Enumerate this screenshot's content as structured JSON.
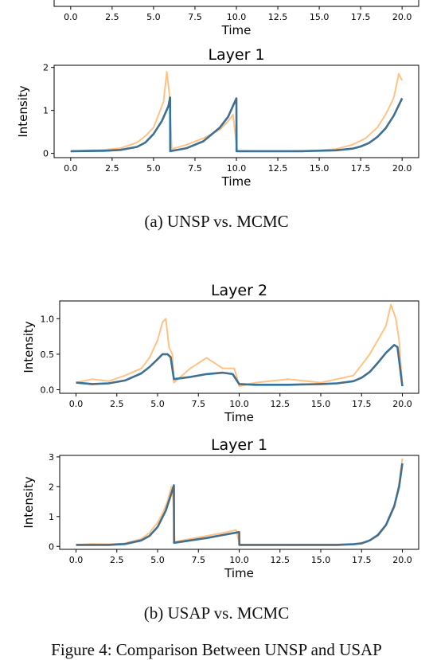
{
  "figure": {
    "caption_a": "(a) UNSP vs. MCMC",
    "caption_b": "(b) USAP vs. MCMC",
    "bottom_text": "Figure 4: Comparison Between UNSP and USAP"
  },
  "colors": {
    "model": "#1f77b4",
    "mcmc": "#ffbb78",
    "ref": "#666666"
  },
  "chart_data": [
    {
      "type": "line",
      "panel": "a-top",
      "title": "",
      "xlabel": "Time",
      "ylabel": "",
      "xlim": [
        -1,
        21
      ],
      "xticks": [
        0.0,
        2.5,
        5.0,
        7.5,
        10.0,
        12.5,
        15.0,
        17.5,
        20.0
      ],
      "xtick_labels": [
        "0.0",
        "2.5",
        "5.0",
        "7.5",
        "10.0",
        "12.5",
        "15.0",
        "17.5",
        "20.0"
      ],
      "series": []
    },
    {
      "type": "line",
      "panel": "a-layer1",
      "title": "Layer 1",
      "xlabel": "Time",
      "ylabel": "Intensity",
      "xlim": [
        -1,
        21
      ],
      "ylim": [
        -0.1,
        2.05
      ],
      "xticks": [
        0.0,
        2.5,
        5.0,
        7.5,
        10.0,
        12.5,
        15.0,
        17.5,
        20.0
      ],
      "xtick_labels": [
        "0.0",
        "2.5",
        "5.0",
        "7.5",
        "10.0",
        "12.5",
        "15.0",
        "17.5",
        "20.0"
      ],
      "yticks": [
        0,
        1,
        2
      ],
      "ytick_labels": [
        "0",
        "1",
        "2"
      ],
      "series": [
        {
          "role": "mcmc",
          "x": [
            0,
            1,
            2,
            3,
            4,
            4.5,
            5,
            5.3,
            5.6,
            5.8,
            5.95,
            6.1,
            7,
            8,
            9,
            9.5,
            9.8,
            10.05,
            11,
            13,
            15,
            16,
            17,
            17.8,
            18.5,
            19,
            19.5,
            19.8,
            20
          ],
          "y": [
            0.05,
            0.07,
            0.08,
            0.12,
            0.25,
            0.4,
            0.6,
            0.9,
            1.2,
            1.9,
            1.4,
            0.1,
            0.2,
            0.35,
            0.55,
            0.75,
            0.9,
            0.06,
            0.05,
            0.05,
            0.07,
            0.1,
            0.2,
            0.35,
            0.6,
            0.9,
            1.3,
            1.85,
            1.7
          ]
        },
        {
          "role": "model",
          "x": [
            0,
            2,
            3,
            4,
            4.5,
            5,
            5.5,
            5.9,
            6.0,
            6.01,
            7,
            8,
            9,
            9.5,
            10.0,
            10.01,
            12,
            14,
            16,
            17,
            17.5,
            18,
            18.5,
            19,
            19.5,
            20
          ],
          "y": [
            0.05,
            0.06,
            0.08,
            0.15,
            0.25,
            0.45,
            0.75,
            1.1,
            1.3,
            0.05,
            0.12,
            0.28,
            0.6,
            0.85,
            1.28,
            0.05,
            0.05,
            0.05,
            0.07,
            0.11,
            0.16,
            0.24,
            0.38,
            0.58,
            0.88,
            1.28
          ]
        },
        {
          "role": "ref",
          "x": [
            0,
            2,
            3,
            4,
            4.5,
            5,
            5.5,
            5.9,
            6.0,
            6.01,
            7,
            8,
            9,
            9.5,
            10.0,
            10.01,
            12,
            14,
            16,
            17,
            17.5,
            18,
            18.5,
            19,
            19.5,
            20
          ],
          "y": [
            0.05,
            0.06,
            0.08,
            0.15,
            0.25,
            0.45,
            0.75,
            1.1,
            1.3,
            0.05,
            0.12,
            0.28,
            0.6,
            0.85,
            1.28,
            0.05,
            0.05,
            0.05,
            0.07,
            0.11,
            0.16,
            0.24,
            0.38,
            0.58,
            0.88,
            1.28
          ]
        }
      ]
    },
    {
      "type": "line",
      "panel": "b-layer2",
      "title": "Layer 2",
      "xlabel": "Time",
      "ylabel": "Intensity",
      "xlim": [
        -1,
        21
      ],
      "ylim": [
        -0.05,
        1.25
      ],
      "xticks": [
        0.0,
        2.5,
        5.0,
        7.5,
        10.0,
        12.5,
        15.0,
        17.5,
        20.0
      ],
      "xtick_labels": [
        "0.0",
        "2.5",
        "5.0",
        "7.5",
        "10.0",
        "12.5",
        "15.0",
        "17.5",
        "20.0"
      ],
      "yticks": [
        0.0,
        0.5,
        1.0
      ],
      "ytick_labels": [
        "0.0",
        "0.5",
        "1.0"
      ],
      "series": [
        {
          "role": "mcmc",
          "x": [
            0,
            1,
            2,
            3,
            4,
            4.5,
            5,
            5.3,
            5.5,
            5.7,
            5.9,
            6.0,
            7,
            8,
            9,
            9.7,
            10.0,
            11,
            13,
            15,
            16,
            17,
            17.5,
            18,
            18.5,
            19,
            19.3,
            19.6,
            19.8,
            20
          ],
          "y": [
            0.1,
            0.15,
            0.12,
            0.2,
            0.3,
            0.45,
            0.7,
            0.95,
            1.0,
            0.6,
            0.5,
            0.1,
            0.3,
            0.45,
            0.3,
            0.3,
            0.05,
            0.1,
            0.15,
            0.1,
            0.15,
            0.2,
            0.35,
            0.5,
            0.7,
            0.9,
            1.2,
            1.0,
            0.7,
            0.05
          ]
        },
        {
          "role": "model",
          "x": [
            0,
            1,
            2,
            3,
            4,
            4.5,
            5,
            5.3,
            5.6,
            5.8,
            6.0,
            7,
            8,
            9,
            9.6,
            10.0,
            11,
            13,
            15,
            16,
            17,
            17.5,
            18,
            18.5,
            19,
            19.5,
            19.7,
            20
          ],
          "y": [
            0.1,
            0.08,
            0.09,
            0.13,
            0.23,
            0.32,
            0.43,
            0.5,
            0.5,
            0.46,
            0.15,
            0.18,
            0.22,
            0.24,
            0.22,
            0.08,
            0.07,
            0.07,
            0.08,
            0.09,
            0.12,
            0.17,
            0.25,
            0.38,
            0.52,
            0.63,
            0.6,
            0.05
          ]
        },
        {
          "role": "ref",
          "x": [
            0,
            1,
            2,
            3,
            4,
            4.5,
            5,
            5.3,
            5.6,
            5.8,
            6.0,
            7,
            8,
            9,
            9.6,
            10.0,
            11,
            13,
            15,
            16,
            17,
            17.5,
            18,
            18.5,
            19,
            19.5,
            19.7,
            20
          ],
          "y": [
            0.1,
            0.08,
            0.09,
            0.13,
            0.23,
            0.32,
            0.43,
            0.5,
            0.5,
            0.46,
            0.15,
            0.18,
            0.22,
            0.24,
            0.22,
            0.08,
            0.07,
            0.07,
            0.08,
            0.09,
            0.12,
            0.17,
            0.25,
            0.38,
            0.52,
            0.63,
            0.6,
            0.05
          ]
        }
      ]
    },
    {
      "type": "line",
      "panel": "b-layer1",
      "title": "Layer 1",
      "xlabel": "Time",
      "ylabel": "Intensity",
      "xlim": [
        -1,
        21
      ],
      "ylim": [
        -0.1,
        3.05
      ],
      "xticks": [
        0.0,
        2.5,
        5.0,
        7.5,
        10.0,
        12.5,
        15.0,
        17.5,
        20.0
      ],
      "xtick_labels": [
        "0.0",
        "2.5",
        "5.0",
        "7.5",
        "10.0",
        "12.5",
        "15.0",
        "17.5",
        "20.0"
      ],
      "yticks": [
        0,
        1,
        2,
        3
      ],
      "ytick_labels": [
        "0",
        "1",
        "2",
        "3"
      ],
      "series": [
        {
          "role": "mcmc",
          "x": [
            0,
            1,
            2,
            3,
            4,
            4.5,
            5,
            5.3,
            5.6,
            5.85,
            5.95,
            6.05,
            7,
            8,
            9,
            9.8,
            10.05,
            12,
            14,
            16,
            17,
            17.8,
            18.5,
            19,
            19.5,
            19.8,
            20
          ],
          "y": [
            0.05,
            0.08,
            0.07,
            0.1,
            0.25,
            0.45,
            0.8,
            1.1,
            1.5,
            2.0,
            1.6,
            0.15,
            0.25,
            0.35,
            0.45,
            0.55,
            0.05,
            0.05,
            0.06,
            0.06,
            0.08,
            0.15,
            0.35,
            0.7,
            1.3,
            2.1,
            2.95
          ]
        },
        {
          "role": "model",
          "x": [
            0,
            2,
            3,
            4,
            4.5,
            5,
            5.5,
            5.8,
            6.0,
            6.01,
            7,
            8,
            9,
            10.0,
            10.01,
            12,
            14,
            16,
            17,
            17.5,
            18,
            18.5,
            19,
            19.5,
            19.8,
            20
          ],
          "y": [
            0.05,
            0.05,
            0.08,
            0.2,
            0.35,
            0.65,
            1.2,
            1.7,
            2.05,
            0.12,
            0.2,
            0.28,
            0.38,
            0.48,
            0.05,
            0.05,
            0.05,
            0.05,
            0.07,
            0.1,
            0.2,
            0.38,
            0.72,
            1.35,
            2.0,
            2.78
          ]
        },
        {
          "role": "ref",
          "x": [
            0,
            2,
            3,
            4,
            4.5,
            5,
            5.5,
            5.8,
            6.0,
            6.01,
            7,
            8,
            9,
            10.0,
            10.01,
            12,
            14,
            16,
            17,
            17.5,
            18,
            18.5,
            19,
            19.5,
            19.8,
            20
          ],
          "y": [
            0.05,
            0.05,
            0.08,
            0.2,
            0.35,
            0.65,
            1.2,
            1.7,
            2.05,
            0.12,
            0.2,
            0.28,
            0.38,
            0.48,
            0.05,
            0.05,
            0.05,
            0.05,
            0.07,
            0.1,
            0.2,
            0.38,
            0.72,
            1.35,
            2.0,
            2.78
          ]
        }
      ]
    }
  ]
}
